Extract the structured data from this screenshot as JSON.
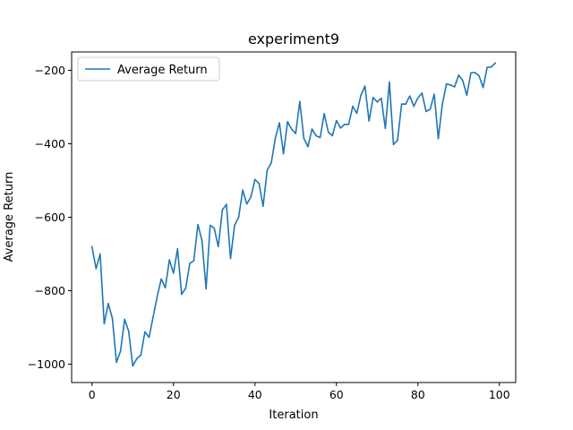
{
  "chart_data": {
    "type": "line",
    "title": "experiment9",
    "xlabel": "Iteration",
    "ylabel": "Average Return",
    "xlim": [
      -5,
      104
    ],
    "ylim": [
      -1050,
      -150
    ],
    "xticks": [
      0,
      20,
      40,
      60,
      80,
      100
    ],
    "yticks": [
      -1000,
      -800,
      -600,
      -400,
      -200
    ],
    "xtick_labels": [
      "0",
      "20",
      "40",
      "60",
      "80",
      "100"
    ],
    "ytick_labels": [
      "−1000",
      "−800",
      "−600",
      "−400",
      "−200"
    ],
    "grid": false,
    "legend_position": "upper-left",
    "series": [
      {
        "name": "Average Return",
        "color": "#1f77b4",
        "x": [
          0,
          1,
          2,
          3,
          4,
          5,
          6,
          7,
          8,
          9,
          10,
          11,
          12,
          13,
          14,
          15,
          16,
          17,
          18,
          19,
          20,
          21,
          22,
          23,
          24,
          25,
          26,
          27,
          28,
          29,
          30,
          31,
          32,
          33,
          34,
          35,
          36,
          37,
          38,
          39,
          40,
          41,
          42,
          43,
          44,
          45,
          46,
          47,
          48,
          49,
          50,
          51,
          52,
          53,
          54,
          55,
          56,
          57,
          58,
          59,
          60,
          61,
          62,
          63,
          64,
          65,
          66,
          67,
          68,
          69,
          70,
          71,
          72,
          73,
          74,
          75,
          76,
          77,
          78,
          79,
          80,
          81,
          82,
          83,
          84,
          85,
          86,
          87,
          88,
          89,
          90,
          91,
          92,
          93,
          94,
          95,
          96,
          97,
          98,
          99
        ],
        "values": [
          -680,
          -740,
          -700,
          -890,
          -835,
          -875,
          -995,
          -965,
          -878,
          -910,
          -1005,
          -985,
          -975,
          -912,
          -927,
          -872,
          -816,
          -768,
          -792,
          -716,
          -752,
          -686,
          -810,
          -793,
          -726,
          -718,
          -620,
          -664,
          -795,
          -622,
          -630,
          -680,
          -580,
          -565,
          -712,
          -622,
          -600,
          -526,
          -564,
          -545,
          -497,
          -508,
          -570,
          -472,
          -452,
          -385,
          -343,
          -427,
          -340,
          -360,
          -372,
          -285,
          -385,
          -408,
          -360,
          -378,
          -383,
          -318,
          -368,
          -378,
          -337,
          -357,
          -347,
          -347,
          -298,
          -317,
          -268,
          -243,
          -338,
          -274,
          -286,
          -276,
          -358,
          -232,
          -402,
          -390,
          -292,
          -292,
          -270,
          -298,
          -275,
          -262,
          -312,
          -306,
          -265,
          -386,
          -292,
          -237,
          -240,
          -245,
          -213,
          -228,
          -268,
          -207,
          -206,
          -215,
          -247,
          -192,
          -191,
          -180
        ]
      }
    ]
  }
}
